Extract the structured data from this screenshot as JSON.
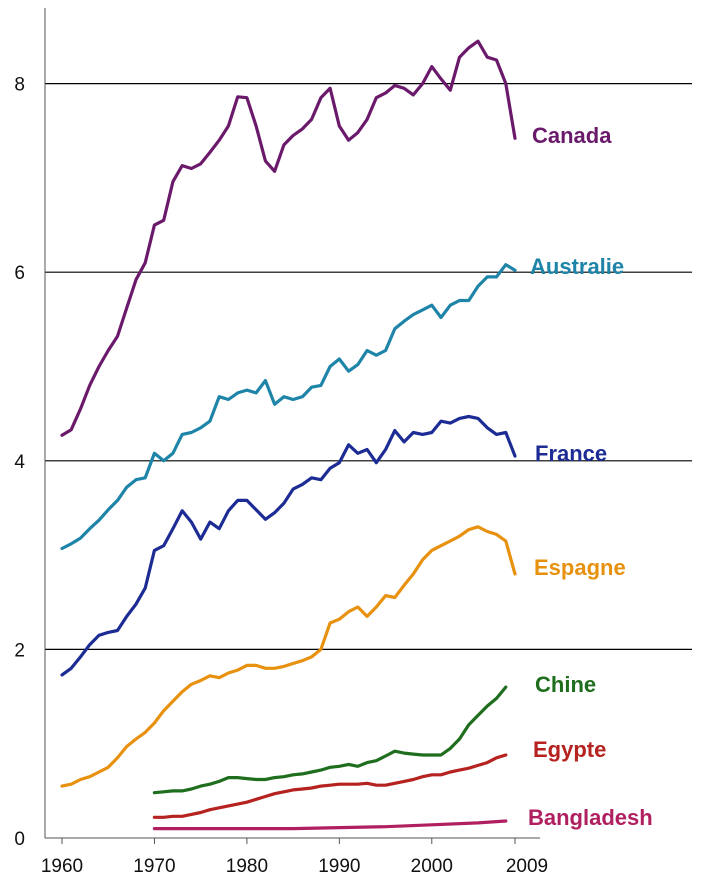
{
  "chart_data": {
    "type": "line",
    "title": "",
    "xlabel": "",
    "ylabel": "",
    "xlim": [
      1960,
      2009
    ],
    "ylim": [
      0,
      8.8
    ],
    "grid": true,
    "legend": "labels at line ends",
    "x_ticks": [
      "1960",
      "1970",
      "1980",
      "1990",
      "2000",
      "2009"
    ],
    "y_ticks": [
      "0",
      "2",
      "4",
      "6",
      "8"
    ],
    "series": [
      {
        "name": "Canada",
        "color": "#6b1a6b",
        "x": [
          1960,
          1961,
          1962,
          1963,
          1964,
          1965,
          1966,
          1967,
          1968,
          1969,
          1970,
          1971,
          1972,
          1973,
          1974,
          1975,
          1976,
          1977,
          1978,
          1979,
          1980,
          1981,
          1982,
          1983,
          1984,
          1985,
          1986,
          1987,
          1988,
          1989,
          1990,
          1991,
          1992,
          1993,
          1994,
          1995,
          1996,
          1997,
          1998,
          1999,
          2000,
          2001,
          2002,
          2003,
          2004,
          2005,
          2006,
          2007,
          2008,
          2009
        ],
        "values": [
          4.27,
          4.33,
          4.55,
          4.8,
          5.0,
          5.17,
          5.32,
          5.62,
          5.92,
          6.1,
          6.5,
          6.55,
          6.96,
          7.13,
          7.1,
          7.15,
          7.27,
          7.4,
          7.55,
          7.86,
          7.85,
          7.55,
          7.18,
          7.07,
          7.35,
          7.45,
          7.52,
          7.62,
          7.85,
          7.95,
          7.55,
          7.4,
          7.48,
          7.62,
          7.85,
          7.9,
          7.98,
          7.95,
          7.88,
          8.0,
          8.18,
          8.05,
          7.93,
          8.28,
          8.38,
          8.45,
          8.28,
          8.25,
          8.0,
          7.42
        ]
      },
      {
        "name": "Australie",
        "color": "#1e84a8",
        "x": [
          1960,
          1961,
          1962,
          1963,
          1964,
          1965,
          1966,
          1967,
          1968,
          1969,
          1970,
          1971,
          1972,
          1973,
          1974,
          1975,
          1976,
          1977,
          1978,
          1979,
          1980,
          1981,
          1982,
          1983,
          1984,
          1985,
          1986,
          1987,
          1988,
          1989,
          1990,
          1991,
          1992,
          1993,
          1994,
          1995,
          1996,
          1997,
          1998,
          1999,
          2000,
          2001,
          2002,
          2003,
          2004,
          2005,
          2006,
          2007,
          2008,
          2009
        ],
        "values": [
          3.07,
          3.12,
          3.18,
          3.28,
          3.37,
          3.48,
          3.58,
          3.72,
          3.8,
          3.82,
          4.08,
          4.0,
          4.08,
          4.28,
          4.3,
          4.35,
          4.42,
          4.68,
          4.65,
          4.72,
          4.75,
          4.72,
          4.85,
          4.6,
          4.68,
          4.65,
          4.68,
          4.78,
          4.8,
          5.0,
          5.08,
          4.95,
          5.02,
          5.17,
          5.12,
          5.17,
          5.4,
          5.48,
          5.55,
          5.6,
          5.65,
          5.52,
          5.65,
          5.7,
          5.7,
          5.85,
          5.95,
          5.95,
          6.08,
          6.02
        ]
      },
      {
        "name": "France",
        "color": "#1c2c94",
        "x": [
          1960,
          1961,
          1962,
          1963,
          1964,
          1965,
          1966,
          1967,
          1968,
          1969,
          1970,
          1971,
          1972,
          1973,
          1974,
          1975,
          1976,
          1977,
          1978,
          1979,
          1980,
          1981,
          1982,
          1983,
          1984,
          1985,
          1986,
          1987,
          1988,
          1989,
          1990,
          1991,
          1992,
          1993,
          1994,
          1995,
          1996,
          1997,
          1998,
          1999,
          2000,
          2001,
          2002,
          2003,
          2004,
          2005,
          2006,
          2007,
          2008,
          2009
        ],
        "values": [
          1.73,
          1.8,
          1.92,
          2.05,
          2.15,
          2.18,
          2.2,
          2.35,
          2.48,
          2.65,
          3.05,
          3.1,
          3.28,
          3.47,
          3.35,
          3.17,
          3.35,
          3.28,
          3.47,
          3.58,
          3.58,
          3.48,
          3.38,
          3.45,
          3.55,
          3.7,
          3.75,
          3.82,
          3.8,
          3.92,
          3.98,
          4.17,
          4.08,
          4.12,
          3.98,
          4.12,
          4.32,
          4.2,
          4.3,
          4.28,
          4.3,
          4.42,
          4.4,
          4.45,
          4.47,
          4.45,
          4.35,
          4.28,
          4.3,
          4.05
        ]
      },
      {
        "name": "Espagne",
        "color": "#e8910f",
        "x": [
          1960,
          1961,
          1962,
          1963,
          1964,
          1965,
          1966,
          1967,
          1968,
          1969,
          1970,
          1971,
          1972,
          1973,
          1974,
          1975,
          1976,
          1977,
          1978,
          1979,
          1980,
          1981,
          1982,
          1983,
          1984,
          1985,
          1986,
          1987,
          1988,
          1989,
          1990,
          1991,
          1992,
          1993,
          1994,
          1995,
          1996,
          1997,
          1998,
          1999,
          2000,
          2001,
          2002,
          2003,
          2004,
          2005,
          2006,
          2007,
          2008,
          2009
        ],
        "values": [
          0.55,
          0.57,
          0.62,
          0.65,
          0.7,
          0.75,
          0.85,
          0.97,
          1.05,
          1.12,
          1.22,
          1.35,
          1.45,
          1.55,
          1.63,
          1.67,
          1.72,
          1.7,
          1.75,
          1.78,
          1.83,
          1.83,
          1.8,
          1.8,
          1.82,
          1.85,
          1.88,
          1.92,
          2.0,
          2.28,
          2.32,
          2.4,
          2.45,
          2.35,
          2.45,
          2.57,
          2.55,
          2.68,
          2.8,
          2.95,
          3.05,
          3.1,
          3.15,
          3.2,
          3.27,
          3.3,
          3.25,
          3.22,
          3.15,
          2.8
        ]
      },
      {
        "name": "Chine",
        "color": "#1e6e1e",
        "x": [
          1970,
          1971,
          1972,
          1973,
          1974,
          1975,
          1976,
          1977,
          1978,
          1979,
          1980,
          1981,
          1982,
          1983,
          1984,
          1985,
          1986,
          1987,
          1988,
          1989,
          1990,
          1991,
          1992,
          1993,
          1994,
          1995,
          1996,
          1997,
          1998,
          1999,
          2000,
          2001,
          2002,
          2003,
          2004,
          2005,
          2006,
          2007,
          2008
        ],
        "values": [
          0.48,
          0.49,
          0.5,
          0.5,
          0.52,
          0.55,
          0.57,
          0.6,
          0.64,
          0.64,
          0.63,
          0.62,
          0.62,
          0.64,
          0.65,
          0.67,
          0.68,
          0.7,
          0.72,
          0.75,
          0.76,
          0.78,
          0.76,
          0.8,
          0.82,
          0.87,
          0.92,
          0.9,
          0.89,
          0.88,
          0.88,
          0.88,
          0.95,
          1.05,
          1.2,
          1.3,
          1.4,
          1.48,
          1.6
        ]
      },
      {
        "name": "Egypte",
        "color": "#b5221f",
        "x": [
          1970,
          1971,
          1972,
          1973,
          1974,
          1975,
          1976,
          1977,
          1978,
          1979,
          1980,
          1981,
          1982,
          1983,
          1984,
          1985,
          1986,
          1987,
          1988,
          1989,
          1990,
          1991,
          1992,
          1993,
          1994,
          1995,
          1996,
          1997,
          1998,
          1999,
          2000,
          2001,
          2002,
          2003,
          2004,
          2005,
          2006,
          2007,
          2008
        ],
        "values": [
          0.22,
          0.22,
          0.23,
          0.23,
          0.25,
          0.27,
          0.3,
          0.32,
          0.34,
          0.36,
          0.38,
          0.41,
          0.44,
          0.47,
          0.49,
          0.51,
          0.52,
          0.53,
          0.55,
          0.56,
          0.57,
          0.57,
          0.57,
          0.58,
          0.56,
          0.56,
          0.58,
          0.6,
          0.62,
          0.65,
          0.67,
          0.67,
          0.7,
          0.72,
          0.74,
          0.77,
          0.8,
          0.85,
          0.88
        ]
      },
      {
        "name": "Bangladesh",
        "color": "#b02060",
        "x": [
          1970,
          1975,
          1980,
          1985,
          1990,
          1995,
          2000,
          2005,
          2008
        ],
        "values": [
          0.1,
          0.1,
          0.1,
          0.1,
          0.11,
          0.12,
          0.14,
          0.16,
          0.18
        ]
      }
    ]
  }
}
